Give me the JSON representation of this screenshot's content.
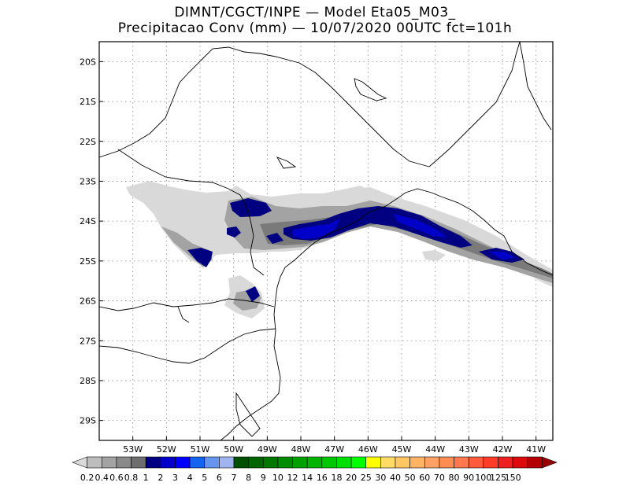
{
  "title": {
    "line1": "DIMNT/CGCT/INPE —  Model Eta05_M03_",
    "line2": "Precipitacao Conv (mm) — 10/07/2020 00UTC fct=101h"
  },
  "map": {
    "lon_range": [
      -54.0,
      -40.5
    ],
    "lat_range": [
      -29.5,
      -19.5
    ],
    "lon_ticks": [
      {
        "value": -53,
        "label": "53W"
      },
      {
        "value": -52,
        "label": "52W"
      },
      {
        "value": -51,
        "label": "51W"
      },
      {
        "value": -50,
        "label": "50W"
      },
      {
        "value": -49,
        "label": "49W"
      },
      {
        "value": -48,
        "label": "48W"
      },
      {
        "value": -47,
        "label": "47W"
      },
      {
        "value": -46,
        "label": "46W"
      },
      {
        "value": -45,
        "label": "45W"
      },
      {
        "value": -44,
        "label": "44W"
      },
      {
        "value": -43,
        "label": "43W"
      },
      {
        "value": -42,
        "label": "42W"
      },
      {
        "value": -41,
        "label": "41W"
      }
    ],
    "lat_ticks": [
      {
        "value": -20,
        "label": "20S"
      },
      {
        "value": -21,
        "label": "21S"
      },
      {
        "value": -22,
        "label": "22S"
      },
      {
        "value": -23,
        "label": "23S"
      },
      {
        "value": -24,
        "label": "24S"
      },
      {
        "value": -25,
        "label": "25S"
      },
      {
        "value": -26,
        "label": "26S"
      },
      {
        "value": -27,
        "label": "27S"
      },
      {
        "value": -28,
        "label": "28S"
      },
      {
        "value": -29,
        "label": "29S"
      }
    ],
    "grid": "dotted",
    "coast_color": "#000000"
  },
  "colorbar": {
    "colors": [
      "#d9d9d9",
      "#bdbdbd",
      "#a3a3a3",
      "#8a8a8a",
      "#6e6e6e",
      "#000080",
      "#0000c8",
      "#0000ff",
      "#1464f0",
      "#6496f0",
      "#a0b4f0",
      "#005000",
      "#006400",
      "#007800",
      "#008c00",
      "#00a000",
      "#00b400",
      "#00c800",
      "#00e000",
      "#00ff00",
      "#ffff00",
      "#ffdc64",
      "#ffc864",
      "#ffb464",
      "#ffa064",
      "#ff8c50",
      "#ff7850",
      "#ff5a3c",
      "#ff3c28",
      "#f01e1e",
      "#dc0a0a",
      "#b40000",
      "#960000"
    ],
    "labels": [
      "0.2",
      "0.4",
      "0.6",
      "0.8",
      "1",
      "2",
      "3",
      "4",
      "5",
      "6",
      "7",
      "8",
      "9",
      "10",
      "12",
      "14",
      "16",
      "18",
      "20",
      "25",
      "30",
      "40",
      "50",
      "60",
      "70",
      "80",
      "90",
      "100",
      "125",
      "150"
    ]
  }
}
